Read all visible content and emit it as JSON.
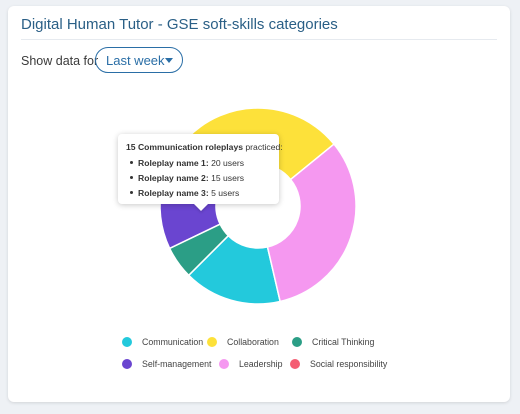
{
  "header": {
    "title": "Digital Human Tutor - GSE soft-skills categories"
  },
  "filter": {
    "label": "Show data for",
    "selected": "Last week"
  },
  "tooltip": {
    "count": "15",
    "category": "Communication",
    "suffix": " roleplays",
    "tail": " practiced:",
    "items": [
      {
        "name": "Roleplay name 1:",
        "value": "20 users"
      },
      {
        "name": "Roleplay name 2:",
        "value": "15 users"
      },
      {
        "name": "Roleplay name 3:",
        "value": "5 users"
      }
    ]
  },
  "chart_data": {
    "type": "pie",
    "donut": true,
    "legend_position": "bottom",
    "categories": [
      "Communication",
      "Leadership",
      "Collaboration",
      "Social responsibility",
      "Self-management",
      "Critical Thinking"
    ],
    "values": [
      15,
      30,
      25,
      8,
      10,
      5
    ],
    "colors": [
      "#23c9dc",
      "#f598f0",
      "#fde13a",
      "#f45d72",
      "#6a45d0",
      "#2b9e86"
    ],
    "legend": [
      {
        "name": "Communication",
        "color": "#23c9dc"
      },
      {
        "name": "Collaboration",
        "color": "#fde13a"
      },
      {
        "name": "Critical Thinking",
        "color": "#2b9e86"
      },
      {
        "name": "Self-management",
        "color": "#6a45d0"
      },
      {
        "name": "Leadership",
        "color": "#f598f0"
      },
      {
        "name": "Social responsibility",
        "color": "#f45d72"
      }
    ]
  }
}
